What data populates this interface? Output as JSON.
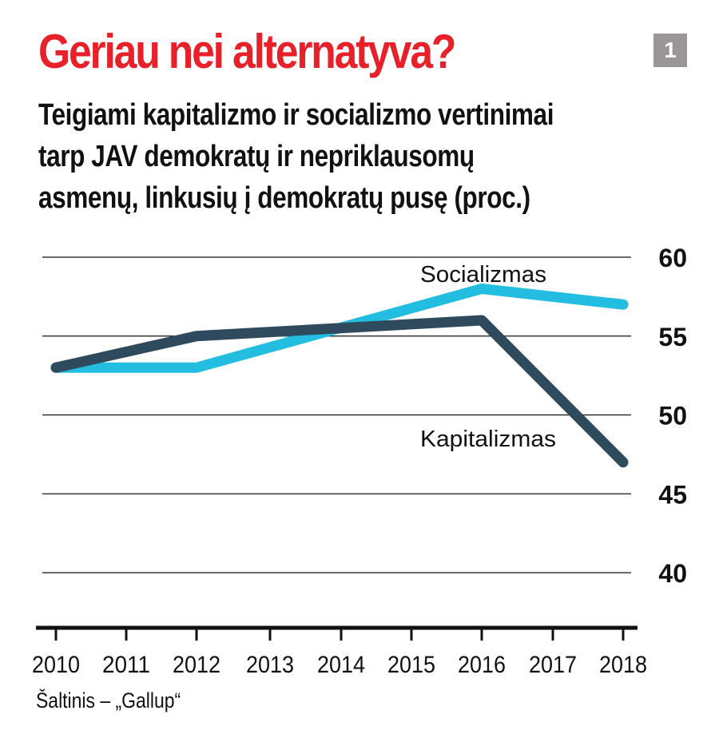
{
  "header": {
    "title": "Geriau nei alternatyva?",
    "badge": "1",
    "subtitle_lines": [
      "Teigiami kapitalizmo ir socializmo vertinimai",
      "tarp JAV demokratų ir nepriklausomų",
      "asmenų, linkusių į demokratų pusę (proc.)"
    ]
  },
  "colors": {
    "title": "#e8202a",
    "socializmas": "#22bde0",
    "kapitalizmas": "#2f4a5c",
    "badge": "#9a9697"
  },
  "source": "Šaltinis – „Gallup“",
  "chart_data": {
    "type": "line",
    "title": "Geriau nei alternatyva?",
    "subtitle": "Teigiami kapitalizmo ir socializmo vertinimai tarp JAV demokratų ir nepriklausomų asmenų, linkusių į demokratų pusę (proc.)",
    "xlabel": "",
    "ylabel": "",
    "x": [
      2010,
      2011,
      2012,
      2013,
      2014,
      2015,
      2016,
      2017,
      2018
    ],
    "x_tick_labels": [
      "2010",
      "2011",
      "2012",
      "2013",
      "2014",
      "2015",
      "2016",
      "2017",
      "2018"
    ],
    "y_ticks": [
      60,
      55,
      50,
      45,
      40
    ],
    "y_tick_labels": [
      "60",
      "55",
      "50",
      "45",
      "40"
    ],
    "ylim": [
      37,
      61
    ],
    "y_axis_side": "right",
    "grid": true,
    "series": [
      {
        "name": "Socializmas",
        "points": [
          [
            2010,
            53
          ],
          [
            2012,
            53
          ],
          [
            2016,
            58
          ],
          [
            2018,
            57
          ]
        ],
        "label_position": "above line, near 2014-2016"
      },
      {
        "name": "Kapitalizmas",
        "points": [
          [
            2010,
            53
          ],
          [
            2012,
            55
          ],
          [
            2016,
            56
          ],
          [
            2018,
            47
          ]
        ],
        "label_position": "below line, near 2016"
      }
    ]
  }
}
